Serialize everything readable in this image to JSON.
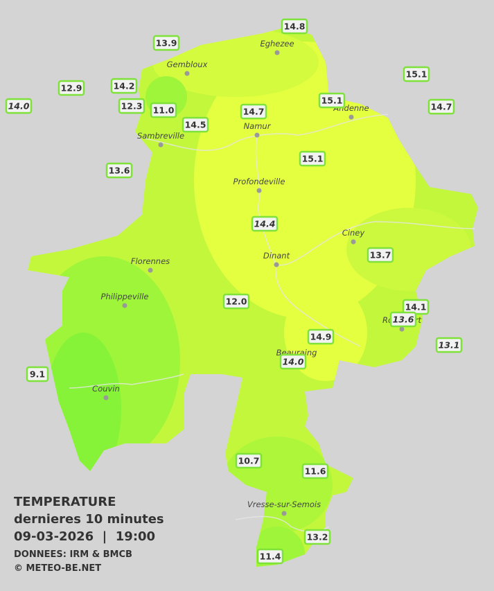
{
  "legend": {
    "title": "TEMPERATURE",
    "subtitle": "dernieres 10 minutes",
    "datetime": "09-03-2026  |  19:00",
    "source": "DONNEES: IRM & BMCB",
    "copyright": "© METEO-BE.NET"
  },
  "cities": [
    "Eghezee",
    "Gembloux",
    "Andenne",
    "Namur",
    "Sambreville",
    "Profondeville",
    "Ciney",
    "Dinant",
    "Florennes",
    "Philippeville",
    "Rochefort",
    "Beauraing",
    "Couvin",
    "Vresse-sur-Semois"
  ],
  "stations": [
    {
      "label": "14.8",
      "italic": false
    },
    {
      "label": "13.9",
      "italic": false
    },
    {
      "label": "15.1",
      "italic": false
    },
    {
      "label": "12.9",
      "italic": false
    },
    {
      "label": "14.2",
      "italic": false
    },
    {
      "label": "14.0",
      "italic": true
    },
    {
      "label": "12.3",
      "italic": false
    },
    {
      "label": "11.0",
      "italic": false
    },
    {
      "label": "15.1",
      "italic": false
    },
    {
      "label": "14.7",
      "italic": false
    },
    {
      "label": "14.7",
      "italic": false
    },
    {
      "label": "14.5",
      "italic": false
    },
    {
      "label": "15.1",
      "italic": false
    },
    {
      "label": "13.6",
      "italic": false
    },
    {
      "label": "14.4",
      "italic": true
    },
    {
      "label": "13.7",
      "italic": false
    },
    {
      "label": "12.0",
      "italic": false
    },
    {
      "label": "14.1",
      "italic": false
    },
    {
      "label": "13.6",
      "italic": true
    },
    {
      "label": "14.9",
      "italic": false
    },
    {
      "label": "13.1",
      "italic": true
    },
    {
      "label": "14.0",
      "italic": true
    },
    {
      "label": "9.1",
      "italic": false
    },
    {
      "label": "10.7",
      "italic": false
    },
    {
      "label": "11.6",
      "italic": false
    },
    {
      "label": "13.2",
      "italic": false
    },
    {
      "label": "11.4",
      "italic": false
    }
  ]
}
